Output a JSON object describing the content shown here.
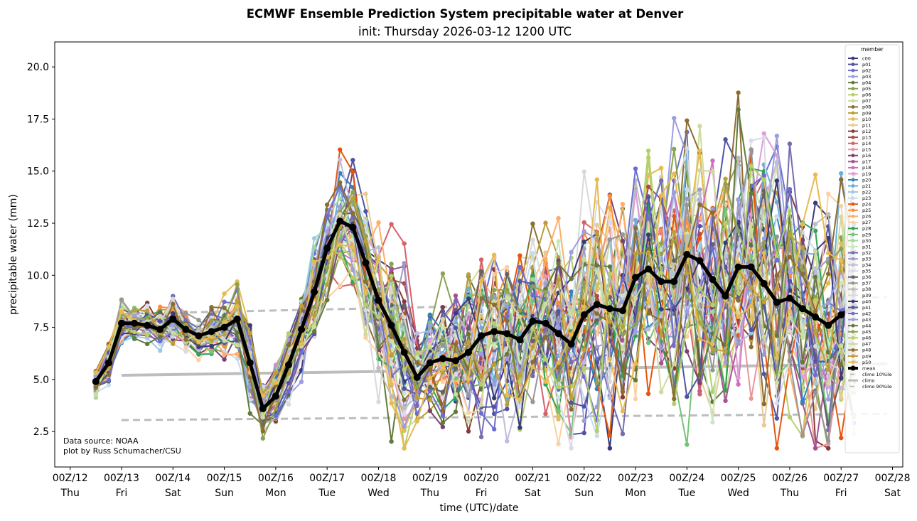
{
  "chart_data": {
    "type": "line",
    "title": "ECMWF Ensemble Prediction System precipitable water at Denver",
    "subtitle": "init: Thursday 2026-03-12 1200 UTC",
    "xlabel": "time (UTC)/date",
    "ylabel": "precipitable water (mm)",
    "ylim": [
      0.8,
      21.2
    ],
    "yticks": [
      2.5,
      5.0,
      7.5,
      10.0,
      12.5,
      15.0,
      17.5,
      20.0
    ],
    "ytick_labels": [
      "2.5",
      "5.0",
      "7.5",
      "10.0",
      "12.5",
      "15.0",
      "17.5",
      "20.0"
    ],
    "xlim_days": [
      -0.3,
      16.2
    ],
    "xticks": [
      {
        "day": 0,
        "line1": "00Z/12",
        "line2": "Thu"
      },
      {
        "day": 1,
        "line1": "00Z/13",
        "line2": "Fri"
      },
      {
        "day": 2,
        "line1": "00Z/14",
        "line2": "Sat"
      },
      {
        "day": 3,
        "line1": "00Z/15",
        "line2": "Sun"
      },
      {
        "day": 4,
        "line1": "00Z/16",
        "line2": "Mon"
      },
      {
        "day": 5,
        "line1": "00Z/17",
        "line2": "Tue"
      },
      {
        "day": 6,
        "line1": "00Z/18",
        "line2": "Wed"
      },
      {
        "day": 7,
        "line1": "00Z/19",
        "line2": "Thu"
      },
      {
        "day": 8,
        "line1": "00Z/20",
        "line2": "Fri"
      },
      {
        "day": 9,
        "line1": "00Z/21",
        "line2": "Sat"
      },
      {
        "day": 10,
        "line1": "00Z/22",
        "line2": "Sun"
      },
      {
        "day": 11,
        "line1": "00Z/23",
        "line2": "Mon"
      },
      {
        "day": 12,
        "line1": "00Z/24",
        "line2": "Tue"
      },
      {
        "day": 13,
        "line1": "00Z/25",
        "line2": "Wed"
      },
      {
        "day": 14,
        "line1": "00Z/26",
        "line2": "Thu"
      },
      {
        "day": 15,
        "line1": "00Z/27",
        "line2": "Fri"
      },
      {
        "day": 16,
        "line1": "00Z/28",
        "line2": "Sat"
      }
    ],
    "time_start_day": 0.5,
    "time_step_hours": 6,
    "mean": {
      "name": "mean",
      "color": "#000000",
      "values": [
        4.9,
        5.8,
        7.7,
        7.7,
        7.6,
        7.4,
        7.9,
        7.4,
        7.1,
        7.3,
        7.5,
        7.9,
        5.8,
        3.6,
        4.2,
        5.7,
        7.4,
        9.2,
        11.3,
        12.6,
        12.3,
        10.6,
        8.8,
        7.6,
        6.3,
        5.1,
        5.8,
        6.0,
        5.9,
        6.3,
        7.1,
        7.3,
        7.2,
        6.9,
        7.8,
        7.7,
        7.2,
        6.7,
        8.1,
        8.6,
        8.4,
        8.3,
        9.9,
        10.3,
        9.7,
        9.7,
        11.0,
        10.7,
        9.8,
        9.0,
        10.4,
        10.4,
        9.6,
        8.7,
        8.9,
        8.4,
        8.0,
        7.6,
        8.1,
        8.5
      ]
    },
    "member_spread": [
      0.35,
      0.5,
      0.5,
      0.45,
      0.45,
      0.5,
      0.55,
      0.55,
      0.55,
      0.6,
      0.65,
      0.8,
      1.2,
      0.7,
      0.7,
      0.9,
      1.1,
      1.3,
      1.3,
      1.3,
      1.4,
      1.7,
      2.1,
      2.3,
      2.1,
      1.3,
      1.3,
      1.6,
      1.7,
      1.8,
      2.0,
      2.1,
      2.1,
      2.2,
      2.3,
      2.3,
      2.4,
      2.5,
      2.6,
      2.7,
      2.8,
      2.9,
      3.0,
      3.0,
      3.1,
      3.2,
      3.4,
      3.5,
      3.5,
      3.6,
      3.6,
      3.6,
      3.6,
      3.5,
      3.4,
      3.4,
      3.3,
      3.3,
      3.2,
      3.2
    ],
    "members": [
      {
        "name": "c00",
        "color": "#393b79"
      },
      {
        "name": "p01",
        "color": "#5254a3"
      },
      {
        "name": "p02",
        "color": "#6b6ecf"
      },
      {
        "name": "p03",
        "color": "#9c9ede"
      },
      {
        "name": "p04",
        "color": "#637939"
      },
      {
        "name": "p05",
        "color": "#8ca252"
      },
      {
        "name": "p06",
        "color": "#b5cf6b"
      },
      {
        "name": "p07",
        "color": "#cedb9c"
      },
      {
        "name": "p08",
        "color": "#8c6d31"
      },
      {
        "name": "p09",
        "color": "#bd9e39"
      },
      {
        "name": "p10",
        "color": "#e7ba52"
      },
      {
        "name": "p11",
        "color": "#e7cb94"
      },
      {
        "name": "p12",
        "color": "#843c39"
      },
      {
        "name": "p13",
        "color": "#ad494a"
      },
      {
        "name": "p14",
        "color": "#d6616b"
      },
      {
        "name": "p15",
        "color": "#e7969c"
      },
      {
        "name": "p16",
        "color": "#7b4173"
      },
      {
        "name": "p17",
        "color": "#a55194"
      },
      {
        "name": "p18",
        "color": "#ce6dbd"
      },
      {
        "name": "p19",
        "color": "#de9ed6"
      },
      {
        "name": "p20",
        "color": "#3182bd"
      },
      {
        "name": "p21",
        "color": "#6baed6"
      },
      {
        "name": "p22",
        "color": "#9ecae1"
      },
      {
        "name": "p23",
        "color": "#c6dbef"
      },
      {
        "name": "p24",
        "color": "#e6550d"
      },
      {
        "name": "p25",
        "color": "#fd8d3c"
      },
      {
        "name": "p26",
        "color": "#fdae6b"
      },
      {
        "name": "p27",
        "color": "#fdd0a2"
      },
      {
        "name": "p28",
        "color": "#31a354"
      },
      {
        "name": "p29",
        "color": "#74c476"
      },
      {
        "name": "p30",
        "color": "#a1d99b"
      },
      {
        "name": "p31",
        "color": "#c7e9c0"
      },
      {
        "name": "p32",
        "color": "#756bb1"
      },
      {
        "name": "p33",
        "color": "#9e9ac8"
      },
      {
        "name": "p34",
        "color": "#bcbddc"
      },
      {
        "name": "p35",
        "color": "#dadaeb"
      },
      {
        "name": "p36",
        "color": "#636363"
      },
      {
        "name": "p37",
        "color": "#969696"
      },
      {
        "name": "p38",
        "color": "#bdbdbd"
      },
      {
        "name": "p39",
        "color": "#d9d9d9"
      },
      {
        "name": "p40",
        "color": "#393b79"
      },
      {
        "name": "p41",
        "color": "#5254a3"
      },
      {
        "name": "p42",
        "color": "#6b6ecf"
      },
      {
        "name": "p43",
        "color": "#9c9ede"
      },
      {
        "name": "p44",
        "color": "#637939"
      },
      {
        "name": "p45",
        "color": "#8ca252"
      },
      {
        "name": "p46",
        "color": "#b5cf6b"
      },
      {
        "name": "p47",
        "color": "#cedb9c"
      },
      {
        "name": "p48",
        "color": "#8c6d31"
      },
      {
        "name": "p49",
        "color": "#bd9e39"
      },
      {
        "name": "p50",
        "color": "#e7ba52"
      }
    ],
    "climo": [
      {
        "name": "climo 10%ile",
        "style": "dashed",
        "color": "#bdbdbd",
        "start_day": 1.0,
        "values": [
          3.05,
          3.35
        ]
      },
      {
        "name": "climo",
        "style": "solid",
        "color": "#bdbdbd",
        "start_day": 1.0,
        "values": [
          5.2,
          5.75
        ]
      },
      {
        "name": "climo 90%ile",
        "style": "dashed",
        "color": "#bdbdbd",
        "start_day": 1.0,
        "values": [
          8.15,
          8.95
        ]
      }
    ],
    "climo_end_day": 15.9,
    "legend": {
      "title": "member",
      "placement": "top-right"
    },
    "grid": false
  },
  "annotations": {
    "source_line1": "Data source: NOAA",
    "source_line2": "plot by Russ Schumacher/CSU"
  }
}
